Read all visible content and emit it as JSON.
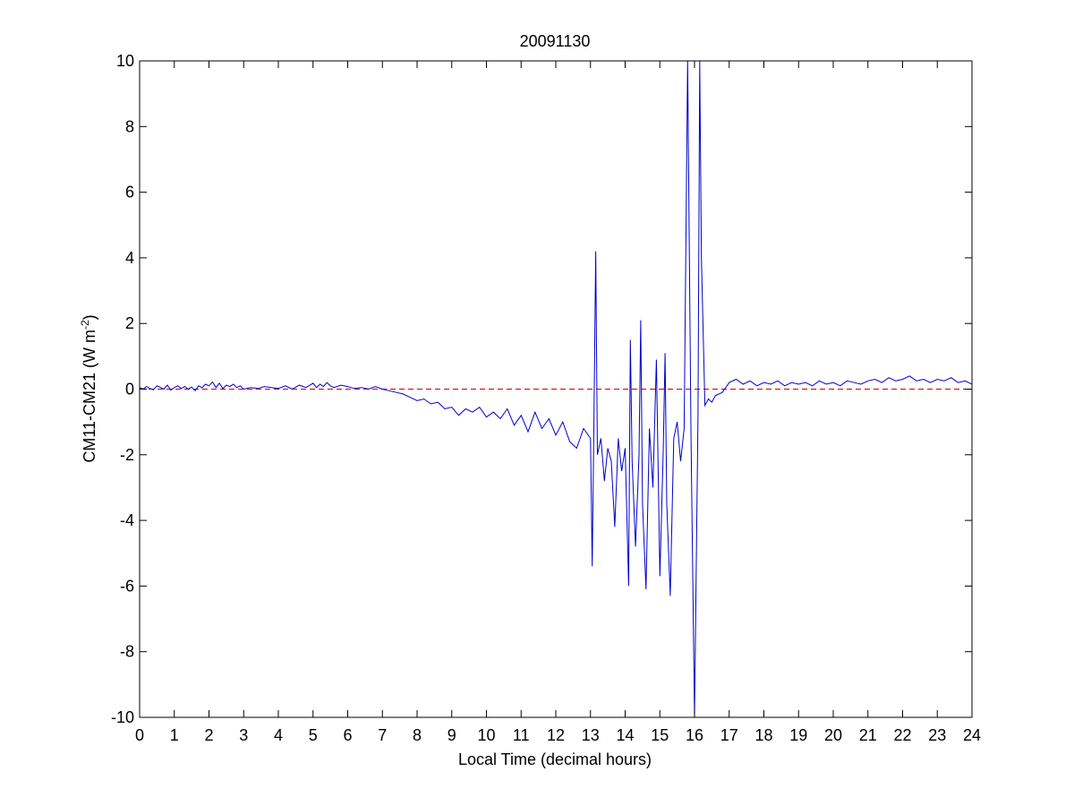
{
  "chart_data": {
    "type": "line",
    "title": "20091130",
    "xlabel": "Local Time (decimal hours)",
    "ylabel_main": "CM11-CM21 (W m",
    "ylabel_sup": "-2",
    "ylabel_close": ")",
    "xlim": [
      0,
      24
    ],
    "ylim": [
      -10,
      10
    ],
    "xticks": [
      0,
      1,
      2,
      3,
      4,
      5,
      6,
      7,
      8,
      9,
      10,
      11,
      12,
      13,
      14,
      15,
      16,
      17,
      18,
      19,
      20,
      21,
      22,
      23,
      24
    ],
    "yticks": [
      -10,
      -8,
      -6,
      -4,
      -2,
      0,
      2,
      4,
      6,
      8,
      10
    ],
    "grid": false,
    "reference_line": {
      "y": 0,
      "style": "dashed",
      "color": "#cc0000"
    },
    "series": [
      {
        "color": "#0000cc",
        "points": [
          [
            0.0,
            0.05
          ],
          [
            0.1,
            0.0
          ],
          [
            0.2,
            0.08
          ],
          [
            0.3,
            0.02
          ],
          [
            0.4,
            -0.02
          ],
          [
            0.5,
            0.1
          ],
          [
            0.6,
            0.05
          ],
          [
            0.7,
            0.0
          ],
          [
            0.8,
            0.12
          ],
          [
            0.9,
            -0.03
          ],
          [
            1.0,
            0.05
          ],
          [
            1.1,
            0.1
          ],
          [
            1.2,
            0.02
          ],
          [
            1.3,
            0.08
          ],
          [
            1.4,
            0.0
          ],
          [
            1.5,
            0.06
          ],
          [
            1.6,
            -0.05
          ],
          [
            1.7,
            0.1
          ],
          [
            1.8,
            0.04
          ],
          [
            1.9,
            0.15
          ],
          [
            2.0,
            0.1
          ],
          [
            2.1,
            0.22
          ],
          [
            2.2,
            0.05
          ],
          [
            2.3,
            0.18
          ],
          [
            2.4,
            0.02
          ],
          [
            2.5,
            0.12
          ],
          [
            2.6,
            0.08
          ],
          [
            2.7,
            0.15
          ],
          [
            2.8,
            0.05
          ],
          [
            2.9,
            0.1
          ],
          [
            3.0,
            0.0
          ],
          [
            3.2,
            0.05
          ],
          [
            3.4,
            0.02
          ],
          [
            3.6,
            0.08
          ],
          [
            3.8,
            0.05
          ],
          [
            4.0,
            0.02
          ],
          [
            4.2,
            0.1
          ],
          [
            4.4,
            0.0
          ],
          [
            4.6,
            0.12
          ],
          [
            4.8,
            0.05
          ],
          [
            5.0,
            0.18
          ],
          [
            5.1,
            0.05
          ],
          [
            5.2,
            0.15
          ],
          [
            5.3,
            0.08
          ],
          [
            5.4,
            0.2
          ],
          [
            5.5,
            0.1
          ],
          [
            5.6,
            0.05
          ],
          [
            5.8,
            0.12
          ],
          [
            6.0,
            0.08
          ],
          [
            6.2,
            0.02
          ],
          [
            6.4,
            0.05
          ],
          [
            6.6,
            0.0
          ],
          [
            6.8,
            0.08
          ],
          [
            7.0,
            0.0
          ],
          [
            7.2,
            -0.05
          ],
          [
            7.4,
            -0.1
          ],
          [
            7.6,
            -0.15
          ],
          [
            7.8,
            -0.25
          ],
          [
            8.0,
            -0.35
          ],
          [
            8.2,
            -0.3
          ],
          [
            8.4,
            -0.45
          ],
          [
            8.6,
            -0.4
          ],
          [
            8.8,
            -0.6
          ],
          [
            9.0,
            -0.55
          ],
          [
            9.2,
            -0.8
          ],
          [
            9.4,
            -0.6
          ],
          [
            9.6,
            -0.7
          ],
          [
            9.8,
            -0.55
          ],
          [
            10.0,
            -0.85
          ],
          [
            10.2,
            -0.7
          ],
          [
            10.4,
            -0.9
          ],
          [
            10.6,
            -0.6
          ],
          [
            10.8,
            -1.1
          ],
          [
            11.0,
            -0.8
          ],
          [
            11.2,
            -1.3
          ],
          [
            11.4,
            -0.7
          ],
          [
            11.6,
            -1.2
          ],
          [
            11.8,
            -0.9
          ],
          [
            12.0,
            -1.4
          ],
          [
            12.2,
            -1.0
          ],
          [
            12.4,
            -1.6
          ],
          [
            12.6,
            -1.8
          ],
          [
            12.8,
            -1.2
          ],
          [
            13.0,
            -1.5
          ],
          [
            13.05,
            -5.4
          ],
          [
            13.1,
            -1.0
          ],
          [
            13.15,
            4.2
          ],
          [
            13.2,
            -2.0
          ],
          [
            13.3,
            -1.5
          ],
          [
            13.4,
            -2.8
          ],
          [
            13.5,
            -1.8
          ],
          [
            13.6,
            -2.2
          ],
          [
            13.7,
            -4.2
          ],
          [
            13.8,
            -1.5
          ],
          [
            13.9,
            -2.5
          ],
          [
            14.0,
            -1.8
          ],
          [
            14.1,
            -6.0
          ],
          [
            14.15,
            1.5
          ],
          [
            14.2,
            -2.2
          ],
          [
            14.3,
            -4.8
          ],
          [
            14.4,
            -2.0
          ],
          [
            14.45,
            2.1
          ],
          [
            14.5,
            -3.5
          ],
          [
            14.6,
            -6.1
          ],
          [
            14.7,
            -1.2
          ],
          [
            14.8,
            -3.0
          ],
          [
            14.9,
            0.9
          ],
          [
            15.0,
            -5.7
          ],
          [
            15.1,
            -1.8
          ],
          [
            15.15,
            1.1
          ],
          [
            15.2,
            -3.5
          ],
          [
            15.3,
            -6.3
          ],
          [
            15.4,
            -1.5
          ],
          [
            15.5,
            -1.0
          ],
          [
            15.6,
            -2.2
          ],
          [
            15.7,
            -1.2
          ],
          [
            15.8,
            10.0
          ],
          [
            15.9,
            -1.5
          ],
          [
            16.0,
            -10.0
          ],
          [
            16.1,
            -0.8
          ],
          [
            16.15,
            10.0
          ],
          [
            16.2,
            4.0
          ],
          [
            16.3,
            -0.5
          ],
          [
            16.4,
            -0.3
          ],
          [
            16.5,
            -0.4
          ],
          [
            16.6,
            -0.2
          ],
          [
            16.8,
            -0.1
          ],
          [
            17.0,
            0.2
          ],
          [
            17.2,
            0.3
          ],
          [
            17.4,
            0.15
          ],
          [
            17.6,
            0.25
          ],
          [
            17.8,
            0.1
          ],
          [
            18.0,
            0.2
          ],
          [
            18.2,
            0.15
          ],
          [
            18.4,
            0.25
          ],
          [
            18.6,
            0.1
          ],
          [
            18.8,
            0.2
          ],
          [
            19.0,
            0.15
          ],
          [
            19.2,
            0.2
          ],
          [
            19.4,
            0.1
          ],
          [
            19.6,
            0.25
          ],
          [
            19.8,
            0.15
          ],
          [
            20.0,
            0.2
          ],
          [
            20.2,
            0.1
          ],
          [
            20.4,
            0.25
          ],
          [
            20.6,
            0.2
          ],
          [
            20.8,
            0.15
          ],
          [
            21.0,
            0.25
          ],
          [
            21.2,
            0.3
          ],
          [
            21.4,
            0.2
          ],
          [
            21.6,
            0.35
          ],
          [
            21.8,
            0.25
          ],
          [
            22.0,
            0.3
          ],
          [
            22.2,
            0.4
          ],
          [
            22.4,
            0.25
          ],
          [
            22.6,
            0.3
          ],
          [
            22.8,
            0.2
          ],
          [
            23.0,
            0.3
          ],
          [
            23.2,
            0.25
          ],
          [
            23.4,
            0.35
          ],
          [
            23.6,
            0.2
          ],
          [
            23.8,
            0.25
          ],
          [
            24.0,
            0.15
          ]
        ]
      }
    ]
  }
}
